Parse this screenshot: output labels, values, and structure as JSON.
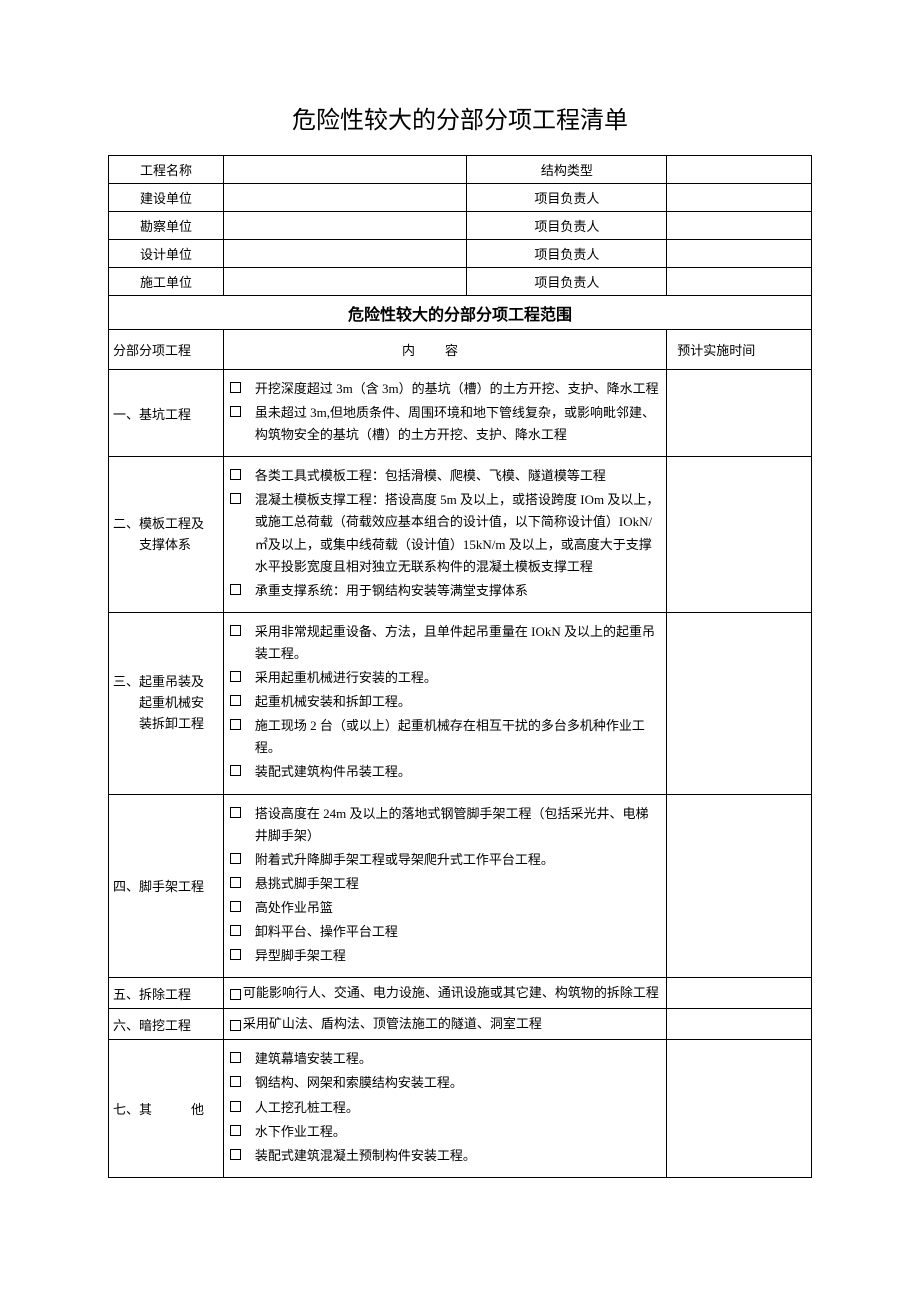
{
  "title": "危险性较大的分部分项工程清单",
  "header": {
    "rows": [
      {
        "left_label": "工程名称",
        "right_label": "结构类型"
      },
      {
        "left_label": "建设单位",
        "right_label": "项目负责人"
      },
      {
        "left_label": "勘察单位",
        "right_label": "项目负责人"
      },
      {
        "left_label": "设计单位",
        "right_label": "项目负责人"
      },
      {
        "left_label": "施工单位",
        "right_label": "项目负责人"
      }
    ]
  },
  "section_title": "危险性较大的分部分项工程范围",
  "columns": {
    "category": "分部分项工程",
    "content": "内容",
    "time": "预计实施时间"
  },
  "rows": [
    {
      "category": "一、基坑工程",
      "items": [
        "开挖深度超过 3m（含 3m）的基坑（槽）的土方开挖、支护、降水工程",
        "虽未超过 3m,但地质条件、周围环境和地下管线复杂，或影响毗邻建、构筑物安全的基坑（槽）的土方开挖、支护、降水工程"
      ]
    },
    {
      "category": "二、模板工程及支撑体系",
      "category_lines": [
        "二、模板工程及",
        "支撑体系"
      ],
      "category_indent": true,
      "items": [
        "各类工具式模板工程：包括滑模、爬模、飞模、隧道模等工程",
        "混凝土模板支撑工程：搭设高度 5m 及以上，或搭设跨度 IOm 及以上，或施工总荷载（荷载效应基本组合的设计值，以下简称设计值）IOkN/㎡及以上，或集中线荷载（设计值）15kN/m 及以上，或高度大于支撑水平投影宽度且相对独立无联系构件的混凝土模板支撑工程",
        "承重支撑系统：用于钢结构安装等满堂支撑体系"
      ]
    },
    {
      "category": "三、起重吊装及起重机械安装拆卸工程",
      "category_lines": [
        "三、起重吊装及",
        "起重机械安",
        "装拆卸工程"
      ],
      "category_indent": true,
      "items": [
        "采用非常规起重设备、方法，且单件起吊重量在 IOkN 及以上的起重吊装工程。",
        "采用起重机械进行安装的工程。",
        "起重机械安装和拆卸工程。",
        "施工现场 2 台（或以上）起重机械存在相互干扰的多台多机种作业工程。",
        "装配式建筑构件吊装工程。"
      ]
    },
    {
      "category": "四、脚手架工程",
      "items": [
        "搭设高度在 24m 及以上的落地式钢管脚手架工程（包括采光井、电梯井脚手架）",
        "附着式升降脚手架工程或导架爬升式工作平台工程。",
        "悬挑式脚手架工程",
        "高处作业吊篮",
        "卸料平台、操作平台工程",
        "异型脚手架工程"
      ]
    },
    {
      "category": "五、拆除工程",
      "inline": true,
      "items": [
        "可能影响行人、交通、电力设施、通讯设施或其它建、构筑物的拆除工程"
      ]
    },
    {
      "category": "六、暗挖工程",
      "inline": true,
      "items": [
        "采用矿山法、盾构法、顶管法施工的隧道、洞室工程"
      ]
    },
    {
      "category": "七、其他",
      "category_spaced": "七、其　　　他",
      "items": [
        "建筑幕墙安装工程。",
        "钢结构、网架和索膜结构安装工程。",
        "人工挖孔桩工程。",
        "水下作业工程。",
        "装配式建筑混凝土预制构件安装工程。"
      ]
    }
  ]
}
